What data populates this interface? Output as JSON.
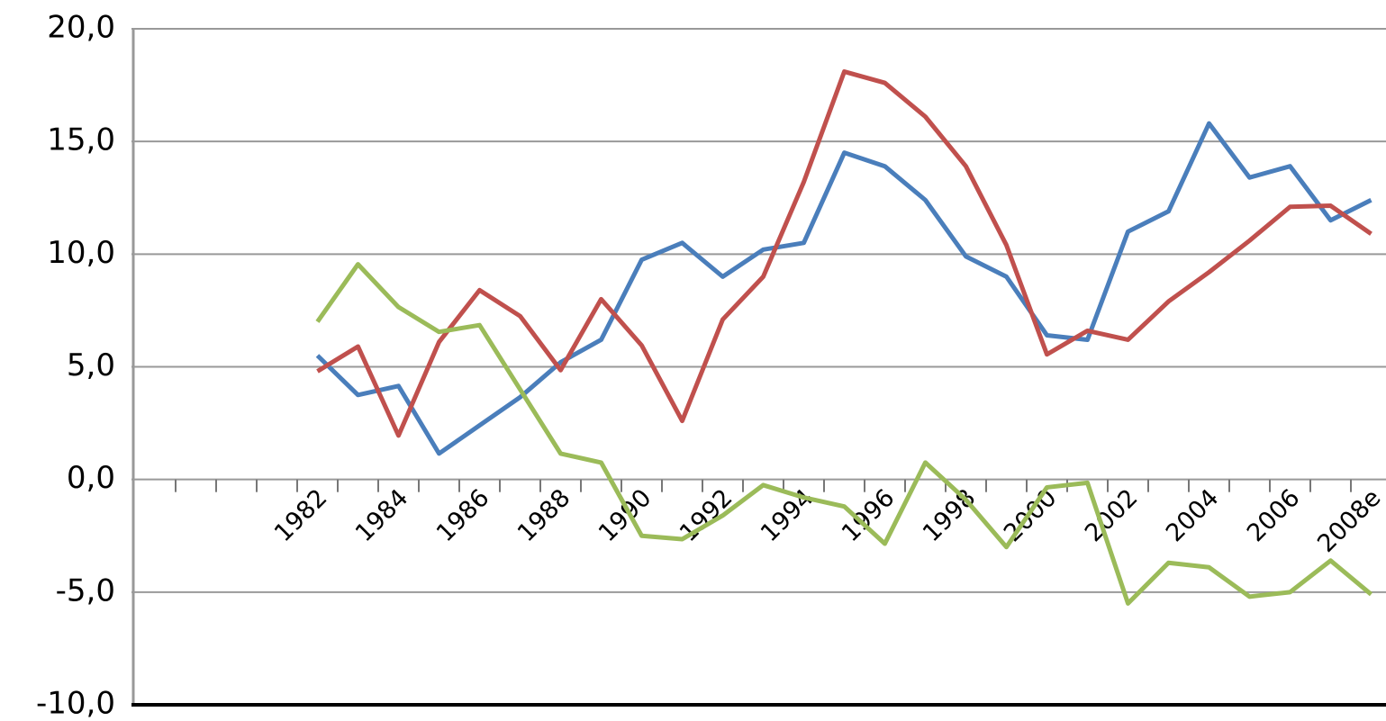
{
  "chart_data": {
    "type": "line",
    "categories": [
      null,
      null,
      null,
      null,
      "1982",
      null,
      "1984",
      null,
      "1986",
      null,
      "1988",
      null,
      "1990",
      null,
      "1992",
      null,
      "1994",
      null,
      "1996",
      null,
      "1998",
      null,
      "2000",
      null,
      "2002",
      null,
      "2004",
      null,
      "2006",
      null,
      "2008e"
    ],
    "series": [
      {
        "color": "#4a7ebb",
        "values": [
          null,
          null,
          null,
          null,
          5.5,
          3.75,
          4.15,
          1.15,
          2.4,
          3.65,
          5.2,
          6.2,
          9.75,
          10.5,
          9.0,
          10.2,
          10.5,
          14.5,
          13.9,
          12.4,
          9.9,
          9.0,
          6.4,
          6.2,
          11.0,
          11.9,
          15.8,
          13.4,
          13.9,
          11.5,
          12.4
        ]
      },
      {
        "color": "#c0504d",
        "values": [
          null,
          null,
          null,
          null,
          4.8,
          5.9,
          1.95,
          6.1,
          8.4,
          7.25,
          4.85,
          8.0,
          5.95,
          2.6,
          7.1,
          9.0,
          13.2,
          18.1,
          17.6,
          16.1,
          13.9,
          10.4,
          5.55,
          6.6,
          6.2,
          7.9,
          9.2,
          10.6,
          12.1,
          12.15,
          10.9
        ]
      },
      {
        "color": "#9bbb59",
        "values": [
          null,
          null,
          null,
          null,
          7.0,
          9.55,
          7.65,
          6.55,
          6.85,
          4.0,
          1.15,
          0.75,
          -2.5,
          -2.65,
          -1.6,
          -0.25,
          -0.8,
          -1.2,
          -2.85,
          0.75,
          -0.9,
          -3.0,
          -0.35,
          -0.15,
          -5.5,
          -3.7,
          -3.9,
          -5.2,
          -5.0,
          -3.6,
          -5.1
        ]
      }
    ],
    "ylim": [
      -10,
      20
    ],
    "yticks": [
      {
        "value": -10,
        "label": "-10,0"
      },
      {
        "value": -5,
        "label": "-5,0"
      },
      {
        "value": 0,
        "label": "0,0"
      },
      {
        "value": 5,
        "label": "5,0"
      },
      {
        "value": 10,
        "label": "10,0"
      },
      {
        "value": 15,
        "label": "15,0"
      },
      {
        "value": 20,
        "label": "20,0"
      }
    ],
    "grid": true
  }
}
